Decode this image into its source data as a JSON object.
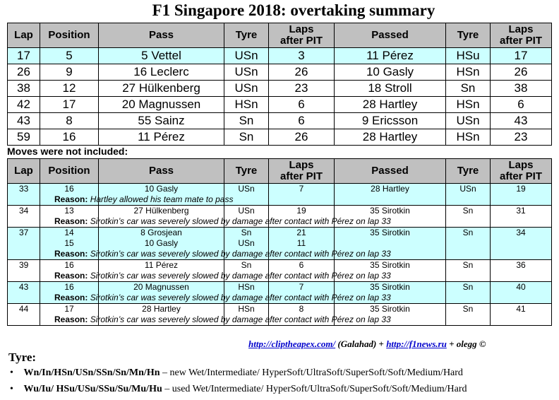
{
  "title": "F1 Singapore 2018: overtaking summary",
  "headers": [
    "Lap",
    "Position",
    "Pass",
    "Tyre",
    "Laps after PIT",
    "Passed",
    "Tyre",
    "Laps after PIT"
  ],
  "headers_laps_line1": "Laps",
  "headers_laps_line2": "after PIT",
  "main_rows": [
    {
      "lap": "17",
      "position": "5",
      "pass": "5 Vettel",
      "tyre": "USn",
      "laps": "3",
      "passed": "11 Pérez",
      "tyre2": "HSu",
      "laps2": "17"
    },
    {
      "lap": "26",
      "position": "9",
      "pass": "16 Leclerc",
      "tyre": "USn",
      "laps": "26",
      "passed": "10 Gasly",
      "tyre2": "HSn",
      "laps2": "26"
    },
    {
      "lap": "38",
      "position": "12",
      "pass": "27 Hülkenberg",
      "tyre": "USn",
      "laps": "23",
      "passed": "18 Stroll",
      "tyre2": "Sn",
      "laps2": "38"
    },
    {
      "lap": "42",
      "position": "17",
      "pass": "20 Magnussen",
      "tyre": "HSn",
      "laps": "6",
      "passed": "28 Hartley",
      "tyre2": "HSn",
      "laps2": "6"
    },
    {
      "lap": "43",
      "position": "8",
      "pass": "55 Sainz",
      "tyre": "Sn",
      "laps": "6",
      "passed": "9 Ericsson",
      "tyre2": "USn",
      "laps2": "43"
    },
    {
      "lap": "59",
      "position": "16",
      "pass": "11 Pérez",
      "tyre": "Sn",
      "laps": "26",
      "passed": "28 Hartley",
      "tyre2": "HSn",
      "laps2": "23"
    }
  ],
  "not_included_label": "Moves were not included:",
  "reason_label": "Reason:",
  "excluded_rows": [
    {
      "lap": "33",
      "position": "16",
      "pass": "10 Gasly",
      "tyre": "USn",
      "laps": "7",
      "passed": "28 Hartley",
      "tyre2": "USn",
      "laps2": "19",
      "extra": null,
      "reason": "Hartley allowed his team mate to pass"
    },
    {
      "lap": "34",
      "position": "13",
      "pass": "27 Hülkenberg",
      "tyre": "USn",
      "laps": "19",
      "passed": "35 Sirotkin",
      "tyre2": "Sn",
      "laps2": "31",
      "extra": null,
      "reason": "Sirotkin’s car was severely slowed by damage after contact with Pérez on lap 33"
    },
    {
      "lap": "37",
      "position": "14",
      "pass": "8 Grosjean",
      "tyre": "Sn",
      "laps": "21",
      "passed": "35 Sirotkin",
      "tyre2": "Sn",
      "laps2": "34",
      "extra": {
        "position": "15",
        "pass": "10 Gasly",
        "tyre": "USn",
        "laps": "11"
      },
      "reason": "Sirotkin’s car was severely slowed by damage after contact with Pérez on lap 33"
    },
    {
      "lap": "39",
      "position": "16",
      "pass": "11 Pérez",
      "tyre": "Sn",
      "laps": "6",
      "passed": "35 Sirotkin",
      "tyre2": "Sn",
      "laps2": "36",
      "extra": null,
      "reason": "Sirotkin’s car was severely slowed by damage after contact with Pérez on lap 33"
    },
    {
      "lap": "43",
      "position": "16",
      "pass": "20 Magnussen",
      "tyre": "HSn",
      "laps": "7",
      "passed": "35 Sirotkin",
      "tyre2": "Sn",
      "laps2": "40",
      "extra": null,
      "reason": "Sirotkin’s car was severely slowed by damage after contact with Pérez on lap 33"
    },
    {
      "lap": "44",
      "position": "17",
      "pass": "28 Hartley",
      "tyre": "HSn",
      "laps": "8",
      "passed": "35 Sirotkin",
      "tyre2": "Sn",
      "laps2": "41",
      "extra": null,
      "reason": "Sirotkin’s car was severely slowed by damage after contact with Pérez on lap 33"
    }
  ],
  "credits": {
    "link1": "http://cliptheapex.com/",
    "author": "(Galahad)",
    "plus1": "+",
    "link2": "http://f1news.ru",
    "tail": "+ olegg ©"
  },
  "tyre_legend": {
    "heading": "Tyre:",
    "new_codes": "Wn/In/HSn/USn/SSn/Sn/Mn/Hn",
    "new_desc": "– new Wet/Intermediate/ HyperSoft/UltraSoft/SuperSoft/Soft/Medium/Hard",
    "used_codes": "Wu/Iu/ HSu/USu/SSu/Su/Mu/Hu",
    "used_desc": "– used Wet/Intermediate/ HyperSoft/UltraSoft/SuperSoft/Soft/Medium/Hard"
  },
  "colors": {
    "header_bg": "#c0c0c0",
    "highlight_bg": "#ccffff",
    "link": "#0000cc"
  }
}
